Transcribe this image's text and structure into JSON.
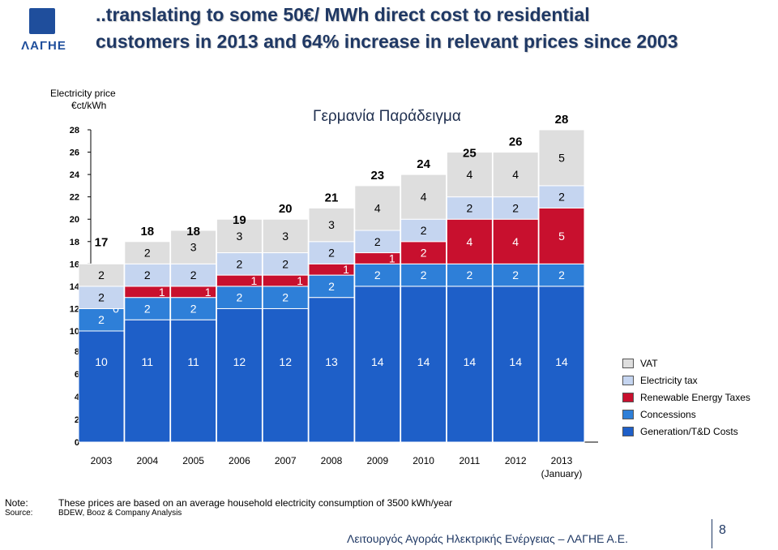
{
  "slide": {
    "title_line1": "..translating to some 50€/ MWh direct cost to residential",
    "title_line2": "customers in 2013 and 64% increase in relevant prices since 2003",
    "logo_text": "ΛΑΓΗΕ",
    "footer": "Λειτουργός Αγοράς Ηλεκτρικής Ενέργειας – ΛΑΓΗΕ Α.Ε.",
    "page_number": "8",
    "note_label": "Note:",
    "note_text": "These prices are based on an average household electricity consumption of 3500 kWh/year",
    "source_label": "Source:",
    "source_text": "BDEW, Booz & Company Analysis"
  },
  "colors": {
    "generation": "#1e5fc8",
    "concessions": "#2e7fd8",
    "renewable": "#c8102e",
    "electricity_tax": "#c5d5f0",
    "vat": "#dedede",
    "title": "#1f3864"
  },
  "chart_data": {
    "type": "bar",
    "stacked": true,
    "title": "Γερμανία Παράδειγμα",
    "ylabel_line1": "Electricity price",
    "ylabel_line2": "€ct/kWh",
    "ylim": [
      0,
      28
    ],
    "yticks": [
      0,
      2,
      4,
      6,
      8,
      10,
      12,
      14,
      16,
      18,
      20,
      22,
      24,
      26,
      28
    ],
    "y_axis_break_between": [
      8,
      10
    ],
    "categories": [
      "2003",
      "2004",
      "2005",
      "2006",
      "2007",
      "2008",
      "2009",
      "2010",
      "2011",
      "2012",
      "2013 (January)"
    ],
    "category_label_lines": [
      [
        "2003"
      ],
      [
        "2004"
      ],
      [
        "2005"
      ],
      [
        "2006"
      ],
      [
        "2007"
      ],
      [
        "2008"
      ],
      [
        "2009"
      ],
      [
        "2010"
      ],
      [
        "2011"
      ],
      [
        "2012"
      ],
      [
        "2013",
        "(January)"
      ]
    ],
    "series": [
      {
        "name": "Generation/T&D Costs",
        "color": "#1e5fc8",
        "values": [
          10,
          11,
          11,
          12,
          12,
          13,
          14,
          14,
          14,
          14,
          14
        ]
      },
      {
        "name": "Concessions",
        "color": "#2e7fd8",
        "values": [
          2,
          2,
          2,
          2,
          2,
          2,
          2,
          2,
          2,
          2,
          2
        ]
      },
      {
        "name": "Renewable Energy Taxes",
        "color": "#c8102e",
        "values": [
          0,
          1,
          1,
          1,
          1,
          1,
          1,
          2,
          4,
          4,
          5
        ]
      },
      {
        "name": "Electricity tax",
        "color": "#c5d5f0",
        "values": [
          2,
          2,
          2,
          2,
          2,
          2,
          2,
          2,
          2,
          2,
          2
        ]
      },
      {
        "name": "VAT",
        "color": "#dedede",
        "values": [
          2,
          2,
          3,
          3,
          3,
          3,
          4,
          4,
          4,
          4,
          5
        ]
      }
    ],
    "totals": [
      17,
      18,
      18,
      19,
      20,
      21,
      23,
      24,
      25,
      26,
      28
    ],
    "legend": [
      "VAT",
      "Electricity tax",
      "Renewable Energy Taxes",
      "Concessions",
      "Generation/T&D Costs"
    ],
    "legend_position": "right"
  }
}
